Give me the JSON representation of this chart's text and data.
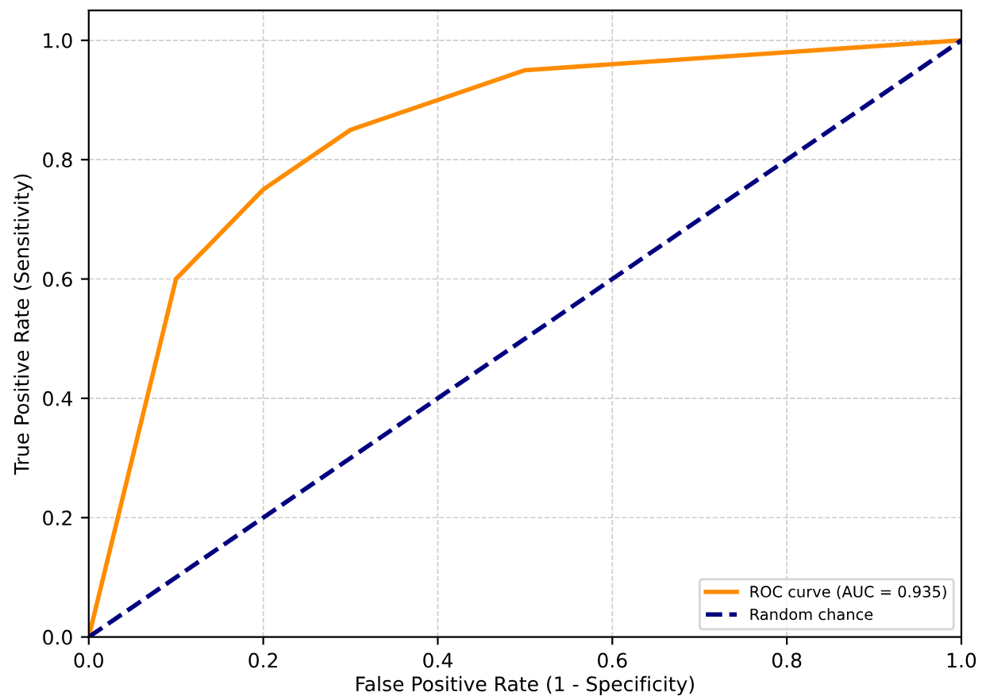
{
  "chart_data": {
    "type": "line",
    "xlabel": "False Positive Rate (1 - Specificity)",
    "ylabel": "True Positive Rate (Sensitivity)",
    "series": [
      {
        "name": "ROC curve (AUC = 0.935)",
        "color": "#ff8c00",
        "x": [
          0,
          0.1,
          0.2,
          0.3,
          0.5,
          1.0
        ],
        "values": [
          0,
          0.6,
          0.75,
          0.85,
          0.95,
          1.0
        ],
        "line_style": "solid"
      },
      {
        "name": "Random chance",
        "color": "#000080",
        "x": [
          0,
          1
        ],
        "values": [
          0,
          1
        ],
        "line_style": "dashed"
      }
    ],
    "xlim": [
      0,
      1
    ],
    "ylim": [
      0,
      1.05
    ],
    "xticks": [
      {
        "value": 0,
        "label": "0.0"
      },
      0.2,
      0.4,
      0.6,
      0.8,
      {
        "value": 1,
        "label": "1.0"
      }
    ],
    "yticks": [
      {
        "value": 0,
        "label": "0.0"
      },
      0.2,
      0.4,
      0.6,
      0.8,
      {
        "value": 1,
        "label": "1.0"
      }
    ],
    "grid": true,
    "legend": "bottom right"
  }
}
